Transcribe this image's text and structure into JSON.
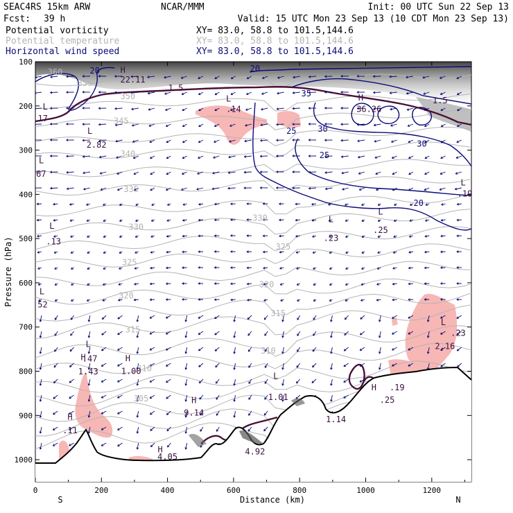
{
  "header": {
    "model": "SEAC4RS 15km ARW",
    "org": "NCAR/MMM",
    "init": "Init: 00 UTC Sun 22 Sep 13",
    "fcst_label": "Fcst:",
    "fcst_value": "39 h",
    "valid": "Valid: 15 UTC Mon 23 Sep 13 (10 CDT Mon 23 Sep 13)"
  },
  "legend": [
    {
      "name": "Potential vorticity",
      "xy": "XY=  83.0, 58.8 to 101.5,144.6",
      "color": "#000000"
    },
    {
      "name": "Potential temperature",
      "xy": "XY=  83.0, 58.8 to 101.5,144.6",
      "color": "#b4b4b4"
    },
    {
      "name": "Horizontal wind speed",
      "xy": "XY=  83.0, 58.8 to 101.5,144.6",
      "color": "#0a0a78"
    }
  ],
  "chart_data": {
    "type": "cross-section",
    "xlabel": "Distance (km)",
    "ylabel": "Pressure (hPa)",
    "x_ticks": [
      0,
      200,
      400,
      600,
      800,
      1000,
      1200
    ],
    "y_ticks": [
      100,
      200,
      300,
      400,
      500,
      600,
      700,
      800,
      900,
      1000
    ],
    "xlim": [
      0,
      1320
    ],
    "ylim": [
      1050,
      100
    ],
    "endpoint_left": "S",
    "endpoint_right": "N",
    "theta_labels": [
      {
        "text": "345",
        "x": 260,
        "p": 240
      },
      {
        "text": "340",
        "x": 280,
        "p": 315
      },
      {
        "text": "335",
        "x": 290,
        "p": 395
      },
      {
        "text": "330",
        "x": 305,
        "p": 480
      },
      {
        "text": "330",
        "x": 680,
        "p": 460
      },
      {
        "text": "325",
        "x": 285,
        "p": 560
      },
      {
        "text": "325",
        "x": 750,
        "p": 525
      },
      {
        "text": "320",
        "x": 275,
        "p": 635
      },
      {
        "text": "320",
        "x": 700,
        "p": 610
      },
      {
        "text": "315",
        "x": 295,
        "p": 712
      },
      {
        "text": "315",
        "x": 735,
        "p": 675
      },
      {
        "text": "310",
        "x": 330,
        "p": 800
      },
      {
        "text": "310",
        "x": 705,
        "p": 760
      },
      {
        "text": "305",
        "x": 320,
        "p": 868
      },
      {
        "text": "350",
        "x": 280,
        "p": 185
      },
      {
        "text": "360",
        "x": 60,
        "p": 130
      },
      {
        "text": "355",
        "x": 150,
        "p": 155
      }
    ],
    "wind_speed_labels": [
      {
        "text": "20",
        "x": 180,
        "p": 127
      },
      {
        "text": "20",
        "x": 665,
        "p": 122
      },
      {
        "text": "35",
        "x": 820,
        "p": 178
      },
      {
        "text": "25",
        "x": 775,
        "p": 263
      },
      {
        "text": "30",
        "x": 870,
        "p": 258
      },
      {
        "text": "25",
        "x": 875,
        "p": 318
      },
      {
        "text": "30",
        "x": 1170,
        "p": 292
      },
      {
        "text": "20",
        "x": 1160,
        "p": 426
      }
    ],
    "pv_labels": [
      {
        "text": "1.5",
        "x": 425,
        "p": 166
      }
    ],
    "extrema": [
      {
        "text": "H",
        "x": 265,
        "p": 125
      },
      {
        "text": "22.11",
        "x": 295,
        "p": 147
      },
      {
        "text": "L",
        "x": 30,
        "p": 208
      },
      {
        "text": ".17",
        "x": 15,
        "p": 235
      },
      {
        "text": "L",
        "x": 165,
        "p": 263
      },
      {
        "text": "2.82",
        "x": 185,
        "p": 294
      },
      {
        "text": "L",
        "x": 18,
        "p": 330
      },
      {
        "text": ".67",
        "x": 10,
        "p": 360
      },
      {
        "text": "L",
        "x": 585,
        "p": 190
      },
      {
        "text": ".14",
        "x": 600,
        "p": 214
      },
      {
        "text": "H",
        "x": 985,
        "p": 188
      },
      {
        "text": "36.26",
        "x": 1010,
        "p": 214
      },
      {
        "text": "1.5",
        "x": 1225,
        "p": 194
      },
      {
        "text": "L",
        "x": 1295,
        "p": 380
      },
      {
        "text": ".19",
        "x": 1300,
        "p": 405
      },
      {
        "text": "L",
        "x": 50,
        "p": 478
      },
      {
        "text": ".13",
        "x": 55,
        "p": 513
      },
      {
        "text": "L",
        "x": 895,
        "p": 463
      },
      {
        "text": ".23",
        "x": 895,
        "p": 505
      },
      {
        "text": "L",
        "x": 1045,
        "p": 446
      },
      {
        "text": ".25",
        "x": 1045,
        "p": 487
      },
      {
        "text": "L",
        "x": 20,
        "p": 626
      },
      {
        "text": "52",
        "x": 22,
        "p": 656
      },
      {
        "text": "L",
        "x": 1235,
        "p": 696
      },
      {
        "text": ".23",
        "x": 1280,
        "p": 720
      },
      {
        "text": "2.16",
        "x": 1240,
        "p": 750
      },
      {
        "text": "L",
        "x": 160,
        "p": 745
      },
      {
        "text": "H",
        "x": 145,
        "p": 775
      },
      {
        "text": ".47",
        "x": 165,
        "p": 778
      },
      {
        "text": "1.43",
        "x": 160,
        "p": 807
      },
      {
        "text": "H",
        "x": 280,
        "p": 777
      },
      {
        "text": "1.00",
        "x": 290,
        "p": 806
      },
      {
        "text": "L",
        "x": 728,
        "p": 817
      },
      {
        "text": "1.01",
        "x": 735,
        "p": 865
      },
      {
        "text": "H",
        "x": 1025,
        "p": 843
      },
      {
        "text": ".19",
        "x": 1095,
        "p": 843
      },
      {
        "text": ".25",
        "x": 1065,
        "p": 871
      },
      {
        "text": "H",
        "x": 105,
        "p": 910
      },
      {
        "text": ".11",
        "x": 105,
        "p": 940
      },
      {
        "text": "H",
        "x": 480,
        "p": 872
      },
      {
        "text": "9.14",
        "x": 480,
        "p": 900
      },
      {
        "text": "1.14",
        "x": 910,
        "p": 915
      },
      {
        "text": "H",
        "x": 378,
        "p": 983
      },
      {
        "text": "4.05",
        "x": 400,
        "p": 1000
      },
      {
        "text": "4.92",
        "x": 665,
        "p": 988
      }
    ]
  }
}
